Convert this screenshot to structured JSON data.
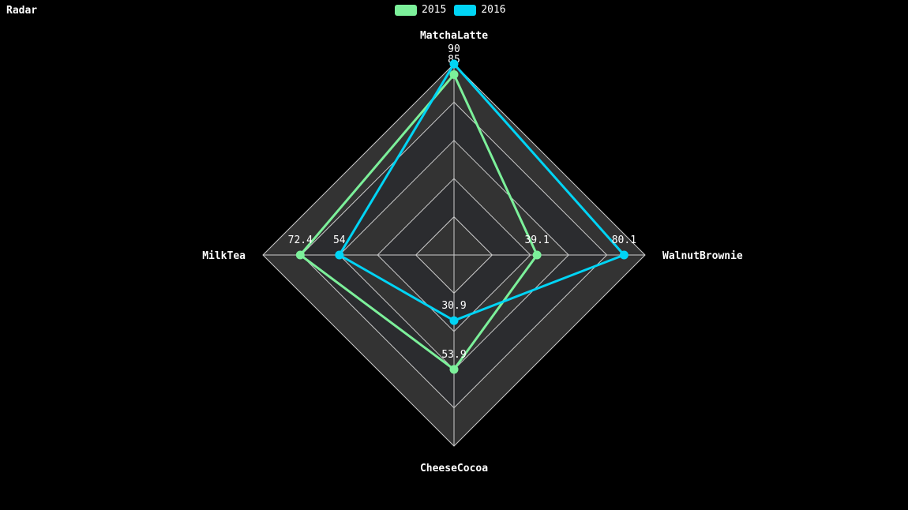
{
  "chart_data": {
    "type": "radar",
    "title": "Radar",
    "indicators": [
      {
        "name": "MatchaLatte",
        "max": 90
      },
      {
        "name": "WalnutBrownie",
        "max": 90
      },
      {
        "name": "CheeseCocoa",
        "max": 90
      },
      {
        "name": "MilkTea",
        "max": 90
      }
    ],
    "series": [
      {
        "name": "2015",
        "color": "#7cf09a",
        "values": [
          85,
          39.1,
          53.9,
          72.4
        ]
      },
      {
        "name": "2016",
        "color": "#00d4f5",
        "values": [
          90,
          80.1,
          30.9,
          54
        ]
      }
    ],
    "split_number": 5,
    "legend_position": "top-center"
  }
}
